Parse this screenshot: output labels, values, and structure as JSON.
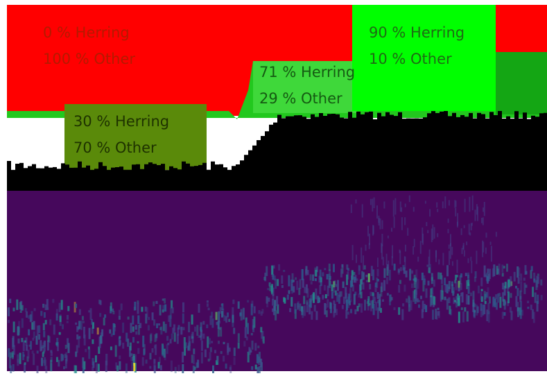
{
  "regions": [
    {
      "herring": "0 % Herring",
      "other": "100 % Other"
    },
    {
      "herring": "30 % Herring",
      "other": "70 % Other"
    },
    {
      "herring": "71 % Herring",
      "other": "29 % Other"
    },
    {
      "herring": "90 % Herring",
      "other": "10 % Other"
    }
  ]
}
